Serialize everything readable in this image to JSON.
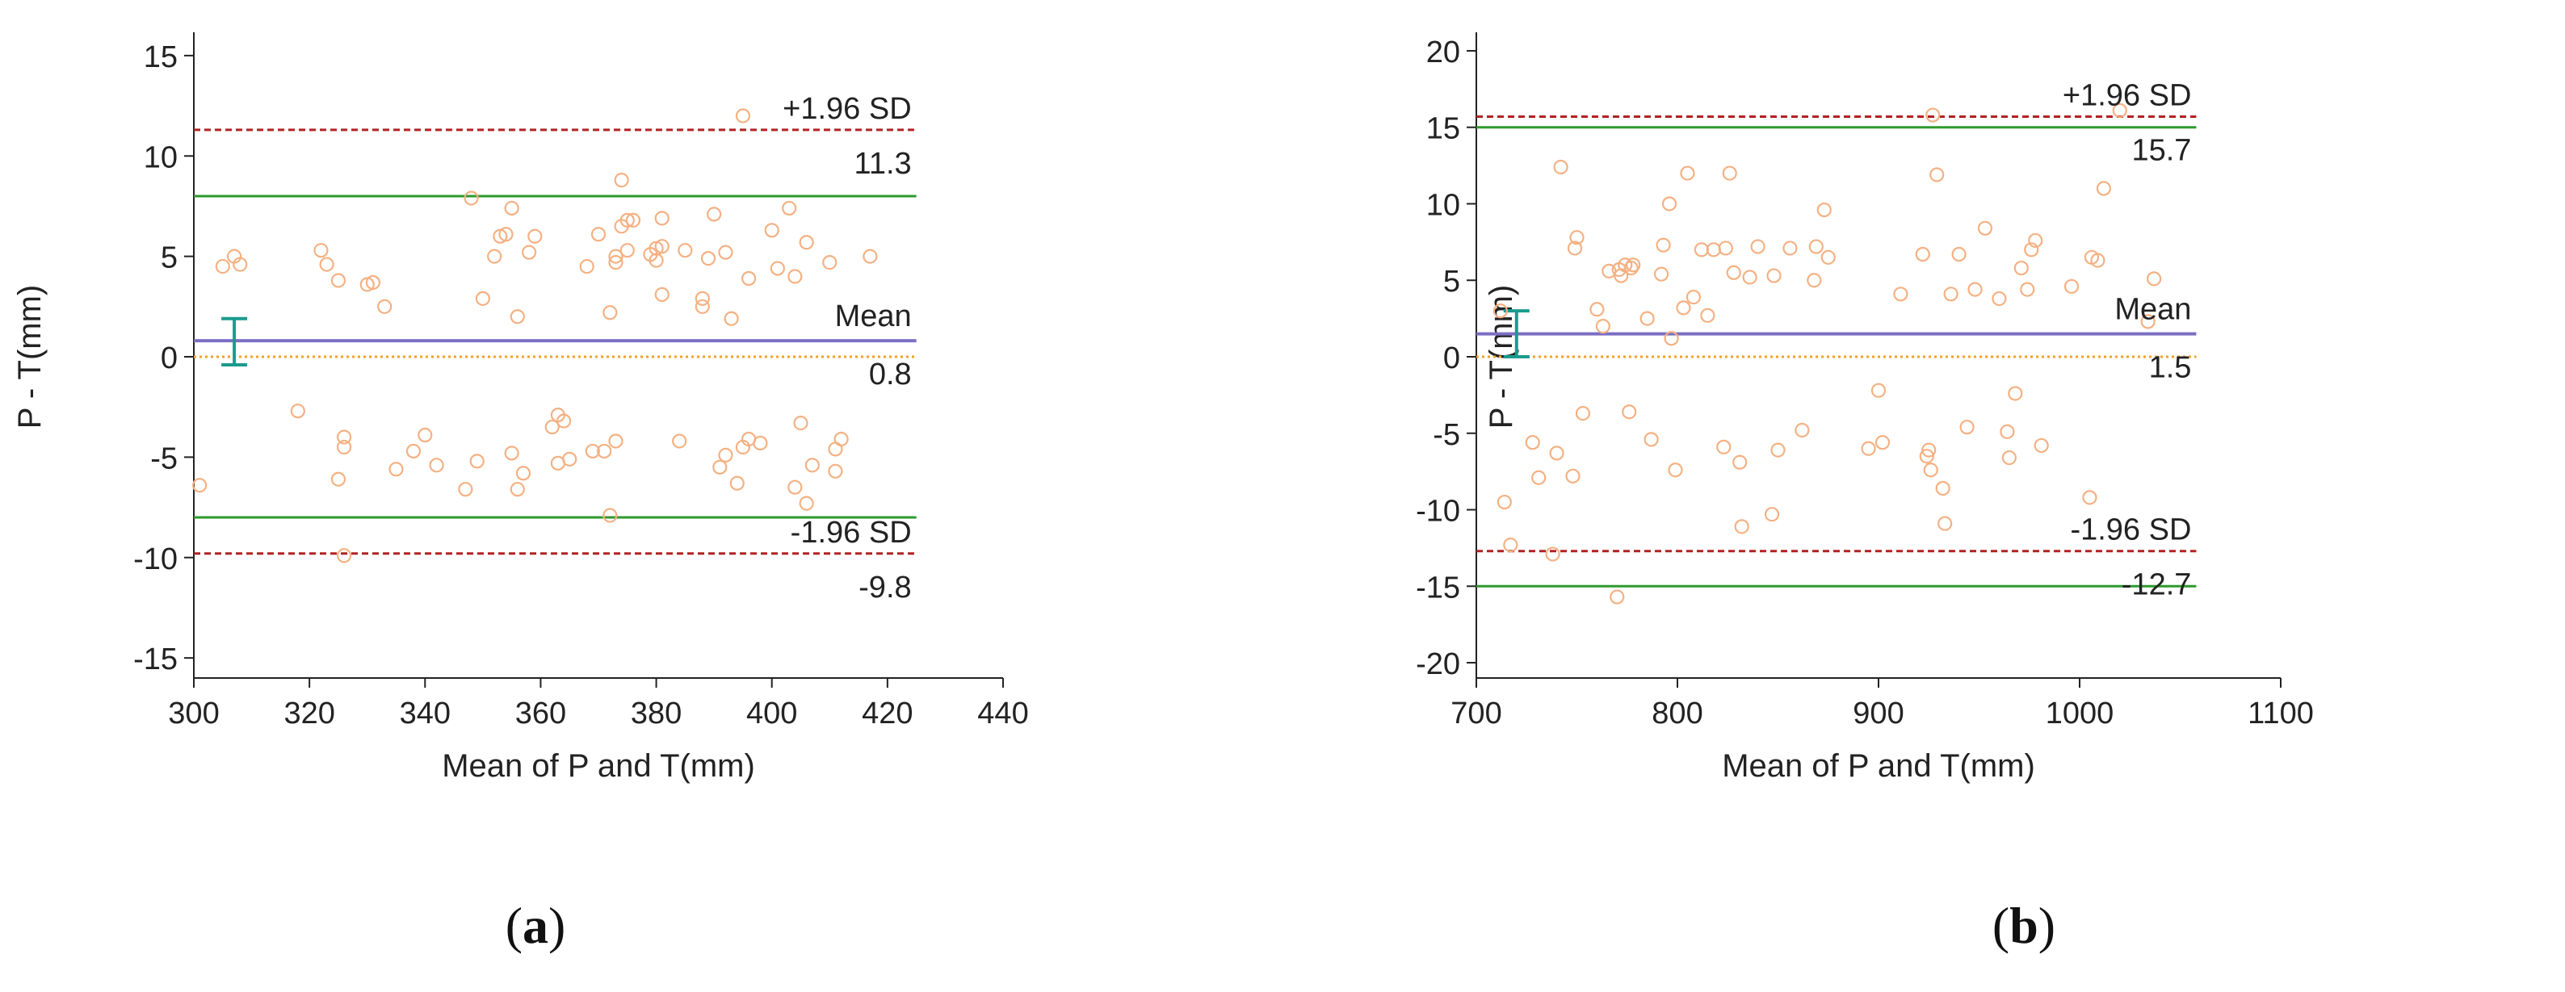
{
  "captions": [
    {
      "open": "(",
      "letter": "a",
      "close": ")"
    },
    {
      "open": "(",
      "letter": "b",
      "close": ")"
    }
  ],
  "colors": {
    "points": "#f4b183",
    "mean_line": "#7b6fc4",
    "zero_line": "#f4a028",
    "limit_dashed": "#b22222",
    "limit_solid": "#2e9a2e",
    "ci_bar": "#1a9b8e",
    "axis": "#222222"
  },
  "chart_data": [
    {
      "type": "scatter",
      "xlabel": "Mean of P and T(mm)",
      "ylabel": "P - T(mm)",
      "xlim": [
        300,
        440
      ],
      "ylim": [
        -16,
        16
      ],
      "xticks": [
        300,
        320,
        340,
        360,
        380,
        400,
        420,
        440
      ],
      "yticks": [
        -15,
        -10,
        -5,
        0,
        5,
        10,
        15
      ],
      "x_end": 425,
      "mean": 0.8,
      "upper_limit": 11.3,
      "lower_limit": -9.8,
      "green_upper": 8.0,
      "green_lower": -8.0,
      "ci_x": 307,
      "ci_low": -0.4,
      "ci_high": 1.9,
      "labels": {
        "upper_name": "+1.96 SD",
        "upper_value": "11.3",
        "mean_name": "Mean",
        "mean_value": "0.8",
        "lower_name": "-1.96 SD",
        "lower_value": "-9.8"
      },
      "points": [
        [
          301,
          -6.4
        ],
        [
          305,
          4.5
        ],
        [
          307,
          5.0
        ],
        [
          308,
          4.6
        ],
        [
          318,
          -2.7
        ],
        [
          322,
          5.3
        ],
        [
          323,
          4.6
        ],
        [
          325,
          3.8
        ],
        [
          325,
          -6.1
        ],
        [
          326,
          -4.5
        ],
        [
          326,
          -4.0
        ],
        [
          326,
          -9.9
        ],
        [
          330,
          3.6
        ],
        [
          331,
          3.7
        ],
        [
          333,
          2.5
        ],
        [
          335,
          -5.6
        ],
        [
          338,
          -4.7
        ],
        [
          340,
          -3.9
        ],
        [
          342,
          -5.4
        ],
        [
          347,
          -6.6
        ],
        [
          348,
          7.9
        ],
        [
          349,
          -5.2
        ],
        [
          350,
          2.9
        ],
        [
          352,
          5.0
        ],
        [
          353,
          6.0
        ],
        [
          354,
          6.1
        ],
        [
          355,
          7.4
        ],
        [
          355,
          -4.8
        ],
        [
          356,
          2.0
        ],
        [
          356,
          -6.6
        ],
        [
          357,
          -5.8
        ],
        [
          358,
          5.2
        ],
        [
          359,
          6.0
        ],
        [
          362,
          -3.5
        ],
        [
          363,
          -2.9
        ],
        [
          363,
          -5.3
        ],
        [
          364,
          -3.2
        ],
        [
          365,
          -5.1
        ],
        [
          368,
          4.5
        ],
        [
          369,
          -4.7
        ],
        [
          370,
          6.1
        ],
        [
          371,
          -4.7
        ],
        [
          372,
          2.2
        ],
        [
          372,
          -7.9
        ],
        [
          373,
          4.7
        ],
        [
          373,
          5.0
        ],
        [
          373,
          -4.2
        ],
        [
          374,
          6.5
        ],
        [
          374,
          8.8
        ],
        [
          375,
          6.8
        ],
        [
          375,
          5.3
        ],
        [
          376,
          6.8
        ],
        [
          379,
          5.1
        ],
        [
          380,
          5.4
        ],
        [
          380,
          4.8
        ],
        [
          381,
          3.1
        ],
        [
          381,
          5.5
        ],
        [
          381,
          6.9
        ],
        [
          384,
          -4.2
        ],
        [
          385,
          5.3
        ],
        [
          388,
          2.5
        ],
        [
          388,
          2.9
        ],
        [
          389,
          4.9
        ],
        [
          390,
          7.1
        ],
        [
          391,
          -5.5
        ],
        [
          392,
          -4.9
        ],
        [
          392,
          5.2
        ],
        [
          393,
          1.9
        ],
        [
          394,
          -6.3
        ],
        [
          395,
          12.0
        ],
        [
          395,
          -4.5
        ],
        [
          396,
          3.9
        ],
        [
          396,
          -4.1
        ],
        [
          398,
          -4.3
        ],
        [
          400,
          6.3
        ],
        [
          401,
          4.4
        ],
        [
          403,
          7.4
        ],
        [
          404,
          4.0
        ],
        [
          404,
          -6.5
        ],
        [
          405,
          -3.3
        ],
        [
          406,
          5.7
        ],
        [
          406,
          -7.3
        ],
        [
          407,
          -5.4
        ],
        [
          410,
          4.7
        ],
        [
          411,
          -4.6
        ],
        [
          411,
          -5.7
        ],
        [
          412,
          -4.1
        ],
        [
          417,
          5.0
        ]
      ]
    },
    {
      "type": "scatter",
      "xlabel": "Mean of P and T(mm)",
      "ylabel": "P - T(mm)",
      "xlim": [
        700,
        1100
      ],
      "ylim": [
        -21,
        21
      ],
      "xticks": [
        700,
        800,
        900,
        1000,
        1100
      ],
      "yticks": [
        -20,
        -15,
        -10,
        -5,
        0,
        5,
        10,
        15,
        20
      ],
      "x_end": 1058,
      "mean": 1.5,
      "upper_limit": 15.7,
      "lower_limit": -12.7,
      "green_upper": 15.0,
      "green_lower": -15.0,
      "ci_x": 720,
      "ci_low": 0.0,
      "ci_high": 3.0,
      "labels": {
        "upper_name": "+1.96 SD",
        "upper_value": "15.7",
        "mean_name": "Mean",
        "mean_value": "1.5",
        "lower_name": "-1.96 SD",
        "lower_value": "-12.7"
      },
      "points": [
        [
          712,
          3.0
        ],
        [
          714,
          -9.5
        ],
        [
          717,
          -12.3
        ],
        [
          728,
          -5.6
        ],
        [
          731,
          -7.9
        ],
        [
          738,
          -12.9
        ],
        [
          740,
          -6.3
        ],
        [
          742,
          12.4
        ],
        [
          748,
          -7.8
        ],
        [
          749,
          7.1
        ],
        [
          750,
          7.8
        ],
        [
          753,
          -3.7
        ],
        [
          760,
          3.1
        ],
        [
          763,
          2.0
        ],
        [
          766,
          5.6
        ],
        [
          770,
          -15.7
        ],
        [
          771,
          5.7
        ],
        [
          772,
          5.3
        ],
        [
          774,
          6.0
        ],
        [
          776,
          -3.6
        ],
        [
          777,
          5.8
        ],
        [
          778,
          6.0
        ],
        [
          785,
          2.5
        ],
        [
          787,
          -5.4
        ],
        [
          792,
          5.4
        ],
        [
          793,
          7.3
        ],
        [
          796,
          10.0
        ],
        [
          797,
          1.2
        ],
        [
          799,
          -7.4
        ],
        [
          803,
          3.2
        ],
        [
          805,
          12.0
        ],
        [
          808,
          3.9
        ],
        [
          812,
          7.0
        ],
        [
          815,
          2.7
        ],
        [
          818,
          7.0
        ],
        [
          823,
          -5.9
        ],
        [
          824,
          7.1
        ],
        [
          826,
          12.0
        ],
        [
          828,
          5.5
        ],
        [
          831,
          -6.9
        ],
        [
          832,
          -11.1
        ],
        [
          836,
          5.2
        ],
        [
          840,
          7.2
        ],
        [
          847,
          -10.3
        ],
        [
          848,
          5.3
        ],
        [
          850,
          -6.1
        ],
        [
          856,
          7.1
        ],
        [
          862,
          -4.8
        ],
        [
          868,
          5.0
        ],
        [
          869,
          7.2
        ],
        [
          873,
          9.6
        ],
        [
          875,
          6.5
        ],
        [
          895,
          -6.0
        ],
        [
          900,
          -2.2
        ],
        [
          902,
          -5.6
        ],
        [
          911,
          4.1
        ],
        [
          922,
          6.7
        ],
        [
          924,
          -6.5
        ],
        [
          925,
          -6.1
        ],
        [
          926,
          -7.4
        ],
        [
          927,
          15.8
        ],
        [
          929,
          11.9
        ],
        [
          932,
          -8.6
        ],
        [
          933,
          -10.9
        ],
        [
          936,
          4.1
        ],
        [
          940,
          6.7
        ],
        [
          944,
          -4.6
        ],
        [
          948,
          4.4
        ],
        [
          953,
          8.4
        ],
        [
          960,
          3.8
        ],
        [
          964,
          -4.9
        ],
        [
          965,
          -6.6
        ],
        [
          968,
          -2.4
        ],
        [
          971,
          5.8
        ],
        [
          974,
          4.4
        ],
        [
          976,
          7.0
        ],
        [
          978,
          7.6
        ],
        [
          981,
          -5.8
        ],
        [
          996,
          4.6
        ],
        [
          1005,
          -9.2
        ],
        [
          1006,
          6.5
        ],
        [
          1009,
          6.3
        ],
        [
          1012,
          11.0
        ],
        [
          1020,
          16.1
        ],
        [
          1034,
          2.3
        ],
        [
          1037,
          5.1
        ]
      ]
    }
  ]
}
